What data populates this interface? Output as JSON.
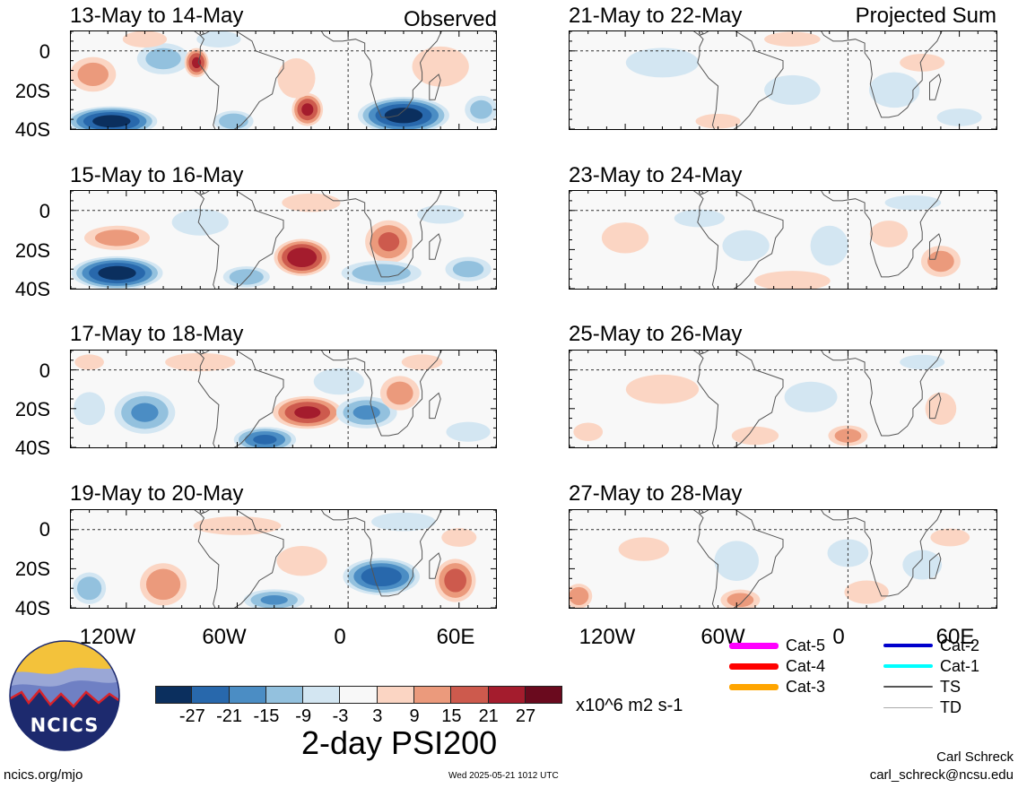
{
  "chart_data": {
    "type": "heatmap",
    "title": "2-day PSI200",
    "units": "x10^6 m2 s-1",
    "section_labels": {
      "left": "Observed",
      "right": "Projected Sum"
    },
    "x_ticks": [
      "120W",
      "60W",
      "0",
      "60E"
    ],
    "x_tick_values": [
      -120,
      -60,
      0,
      60
    ],
    "y_ticks": [
      "0",
      "20S",
      "40S"
    ],
    "y_tick_values": [
      0,
      -20,
      -40
    ],
    "xlim": [
      -150,
      80
    ],
    "ylim": [
      -40,
      10
    ],
    "grid": "dashed zero lines",
    "panels": [
      {
        "label": "13-May to 14-May",
        "column": "left",
        "row": 0,
        "blobs": [
          {
            "lon": -100,
            "lat": -4,
            "value": -12,
            "rx": 16,
            "ry": 9
          },
          {
            "lon": -138,
            "lat": -12,
            "value": 12,
            "rx": 14,
            "ry": 10
          },
          {
            "lon": -82,
            "lat": -6,
            "value": 22,
            "rx": 7,
            "ry": 8
          },
          {
            "lon": -128,
            "lat": -36,
            "value": -30,
            "rx": 26,
            "ry": 8
          },
          {
            "lon": -62,
            "lat": -36,
            "value": -14,
            "rx": 12,
            "ry": 6
          },
          {
            "lon": -22,
            "lat": -30,
            "value": 22,
            "rx": 9,
            "ry": 9
          },
          {
            "lon": -28,
            "lat": -14,
            "value": 9,
            "rx": 12,
            "ry": 12
          },
          {
            "lon": 30,
            "lat": -33,
            "value": -30,
            "rx": 26,
            "ry": 10
          },
          {
            "lon": 72,
            "lat": -30,
            "value": -12,
            "rx": 10,
            "ry": 8
          },
          {
            "lon": 50,
            "lat": -8,
            "value": 9,
            "rx": 18,
            "ry": 12
          },
          {
            "lon": -70,
            "lat": 6,
            "value": -9,
            "rx": 14,
            "ry": 5
          },
          {
            "lon": -110,
            "lat": 6,
            "value": 9,
            "rx": 14,
            "ry": 5
          }
        ]
      },
      {
        "label": "15-May to 16-May",
        "column": "left",
        "row": 1,
        "blobs": [
          {
            "lon": -125,
            "lat": -32,
            "value": -30,
            "rx": 26,
            "ry": 9
          },
          {
            "lon": -125,
            "lat": -14,
            "value": 12,
            "rx": 20,
            "ry": 7
          },
          {
            "lon": -80,
            "lat": -6,
            "value": -9,
            "rx": 18,
            "ry": 8
          },
          {
            "lon": -55,
            "lat": -34,
            "value": -14,
            "rx": 14,
            "ry": 6
          },
          {
            "lon": -25,
            "lat": -24,
            "value": 26,
            "rx": 16,
            "ry": 10
          },
          {
            "lon": 22,
            "lat": -16,
            "value": 16,
            "rx": 14,
            "ry": 12
          },
          {
            "lon": 18,
            "lat": -32,
            "value": -14,
            "rx": 24,
            "ry": 7
          },
          {
            "lon": 65,
            "lat": -30,
            "value": -12,
            "rx": 14,
            "ry": 7
          },
          {
            "lon": 50,
            "lat": -2,
            "value": -6,
            "rx": 16,
            "ry": 6
          },
          {
            "lon": -20,
            "lat": 4,
            "value": 6,
            "rx": 20,
            "ry": 6
          }
        ]
      },
      {
        "label": "17-May to 18-May",
        "column": "left",
        "row": 2,
        "blobs": [
          {
            "lon": -110,
            "lat": -22,
            "value": -16,
            "rx": 18,
            "ry": 12
          },
          {
            "lon": -140,
            "lat": -20,
            "value": -9,
            "rx": 10,
            "ry": 10
          },
          {
            "lon": -45,
            "lat": -36,
            "value": -22,
            "rx": 18,
            "ry": 7
          },
          {
            "lon": -22,
            "lat": -22,
            "value": 22,
            "rx": 20,
            "ry": 9
          },
          {
            "lon": 10,
            "lat": -22,
            "value": -16,
            "rx": 18,
            "ry": 9
          },
          {
            "lon": 28,
            "lat": -12,
            "value": 12,
            "rx": 12,
            "ry": 10
          },
          {
            "lon": -5,
            "lat": -6,
            "value": -9,
            "rx": 16,
            "ry": 8
          },
          {
            "lon": 65,
            "lat": -32,
            "value": -9,
            "rx": 14,
            "ry": 6
          },
          {
            "lon": -80,
            "lat": 4,
            "value": 6,
            "rx": 24,
            "ry": 6
          },
          {
            "lon": 40,
            "lat": 4,
            "value": 6,
            "rx": 14,
            "ry": 5
          },
          {
            "lon": -140,
            "lat": 4,
            "value": 6,
            "rx": 10,
            "ry": 5
          }
        ]
      },
      {
        "label": "19-May to 20-May",
        "column": "left",
        "row": 3,
        "blobs": [
          {
            "lon": 18,
            "lat": -24,
            "value": -26,
            "rx": 22,
            "ry": 10
          },
          {
            "lon": 58,
            "lat": -26,
            "value": 18,
            "rx": 12,
            "ry": 12
          },
          {
            "lon": -100,
            "lat": -28,
            "value": 14,
            "rx": 14,
            "ry": 12
          },
          {
            "lon": -140,
            "lat": -30,
            "value": -14,
            "rx": 10,
            "ry": 9
          },
          {
            "lon": -40,
            "lat": -36,
            "value": -16,
            "rx": 18,
            "ry": 6
          },
          {
            "lon": -25,
            "lat": -16,
            "value": 9,
            "rx": 16,
            "ry": 9
          },
          {
            "lon": -60,
            "lat": 2,
            "value": 6,
            "rx": 30,
            "ry": 6
          },
          {
            "lon": 30,
            "lat": 4,
            "value": -6,
            "rx": 22,
            "ry": 6
          },
          {
            "lon": 60,
            "lat": -4,
            "value": 6,
            "rx": 12,
            "ry": 6
          }
        ]
      },
      {
        "label": "21-May to 22-May",
        "column": "right",
        "row": 0,
        "blobs": [
          {
            "lon": -100,
            "lat": -6,
            "value": -5,
            "rx": 26,
            "ry": 10
          },
          {
            "lon": -30,
            "lat": -20,
            "value": -5,
            "rx": 20,
            "ry": 10
          },
          {
            "lon": 25,
            "lat": -20,
            "value": -5,
            "rx": 18,
            "ry": 12
          },
          {
            "lon": 60,
            "lat": -34,
            "value": -5,
            "rx": 16,
            "ry": 6
          },
          {
            "lon": -70,
            "lat": -36,
            "value": 5,
            "rx": 16,
            "ry": 5
          },
          {
            "lon": -30,
            "lat": 6,
            "value": 5,
            "rx": 20,
            "ry": 5
          },
          {
            "lon": 40,
            "lat": -6,
            "value": 5,
            "rx": 16,
            "ry": 6
          }
        ]
      },
      {
        "label": "23-May to 24-May",
        "column": "right",
        "row": 1,
        "blobs": [
          {
            "lon": -120,
            "lat": -14,
            "value": 6,
            "rx": 16,
            "ry": 10
          },
          {
            "lon": -10,
            "lat": -18,
            "value": -9,
            "rx": 12,
            "ry": 12
          },
          {
            "lon": -55,
            "lat": -18,
            "value": -6,
            "rx": 16,
            "ry": 10
          },
          {
            "lon": 50,
            "lat": -26,
            "value": 12,
            "rx": 12,
            "ry": 9
          },
          {
            "lon": 22,
            "lat": -12,
            "value": 9,
            "rx": 12,
            "ry": 8
          },
          {
            "lon": -30,
            "lat": -36,
            "value": 9,
            "rx": 24,
            "ry": 6
          },
          {
            "lon": -80,
            "lat": -4,
            "value": -5,
            "rx": 18,
            "ry": 6
          },
          {
            "lon": 35,
            "lat": 4,
            "value": -5,
            "rx": 20,
            "ry": 5
          }
        ]
      },
      {
        "label": "25-May to 26-May",
        "column": "right",
        "row": 2,
        "blobs": [
          {
            "lon": -100,
            "lat": -10,
            "value": 5,
            "rx": 26,
            "ry": 10
          },
          {
            "lon": -20,
            "lat": -14,
            "value": -6,
            "rx": 18,
            "ry": 10
          },
          {
            "lon": 0,
            "lat": -34,
            "value": 12,
            "rx": 12,
            "ry": 6
          },
          {
            "lon": -50,
            "lat": -34,
            "value": 6,
            "rx": 16,
            "ry": 6
          },
          {
            "lon": -140,
            "lat": -32,
            "value": 6,
            "rx": 10,
            "ry": 6
          },
          {
            "lon": 50,
            "lat": -20,
            "value": 8,
            "rx": 10,
            "ry": 10
          },
          {
            "lon": 40,
            "lat": 4,
            "value": -5,
            "rx": 16,
            "ry": 5
          }
        ]
      },
      {
        "label": "27-May to 28-May",
        "column": "right",
        "row": 3,
        "blobs": [
          {
            "lon": -60,
            "lat": -16,
            "value": -9,
            "rx": 14,
            "ry": 12
          },
          {
            "lon": -58,
            "lat": -36,
            "value": 12,
            "rx": 12,
            "ry": 6
          },
          {
            "lon": -145,
            "lat": -34,
            "value": 14,
            "rx": 8,
            "ry": 7
          },
          {
            "lon": 10,
            "lat": -32,
            "value": 9,
            "rx": 14,
            "ry": 7
          },
          {
            "lon": 0,
            "lat": -12,
            "value": -6,
            "rx": 14,
            "ry": 9
          },
          {
            "lon": 40,
            "lat": -18,
            "value": -5,
            "rx": 14,
            "ry": 10
          },
          {
            "lon": -110,
            "lat": -10,
            "value": 5,
            "rx": 18,
            "ry": 8
          },
          {
            "lon": 55,
            "lat": -4,
            "value": 5,
            "rx": 14,
            "ry": 6
          }
        ]
      }
    ],
    "colorbar": {
      "ticks": [
        "-27",
        "-21",
        "-15",
        "-9",
        "-3",
        "3",
        "9",
        "15",
        "21",
        "27"
      ],
      "levels": [
        -27,
        -21,
        -15,
        -9,
        -3,
        3,
        9,
        15,
        21,
        27
      ],
      "colors": [
        "#0b2f5e",
        "#2868ac",
        "#4b8dc4",
        "#93c1de",
        "#d3e6f2",
        "#f8f8f8",
        "#fbd5c3",
        "#eb9a7c",
        "#cd5a4d",
        "#a41c2d",
        "#6a0a1e"
      ]
    },
    "storm_legend": [
      {
        "label": "Cat-5",
        "color": "#ff00ff"
      },
      {
        "label": "Cat-4",
        "color": "#ff0000"
      },
      {
        "label": "Cat-3",
        "color": "#ffa500"
      },
      {
        "label": "Cat-2",
        "color": "#0000cc"
      },
      {
        "label": "Cat-1",
        "color": "#00ffff"
      },
      {
        "label": "TS",
        "color": "#555555"
      },
      {
        "label": "TD",
        "color": "#aaaaaa"
      }
    ]
  },
  "logo_text": "NCICS",
  "footer": {
    "url": "ncics.org/mjo",
    "timestamp": "Wed 2025-05-21 1012 UTC",
    "author": "Carl Schreck",
    "email": "carl_schreck@ncsu.edu"
  }
}
